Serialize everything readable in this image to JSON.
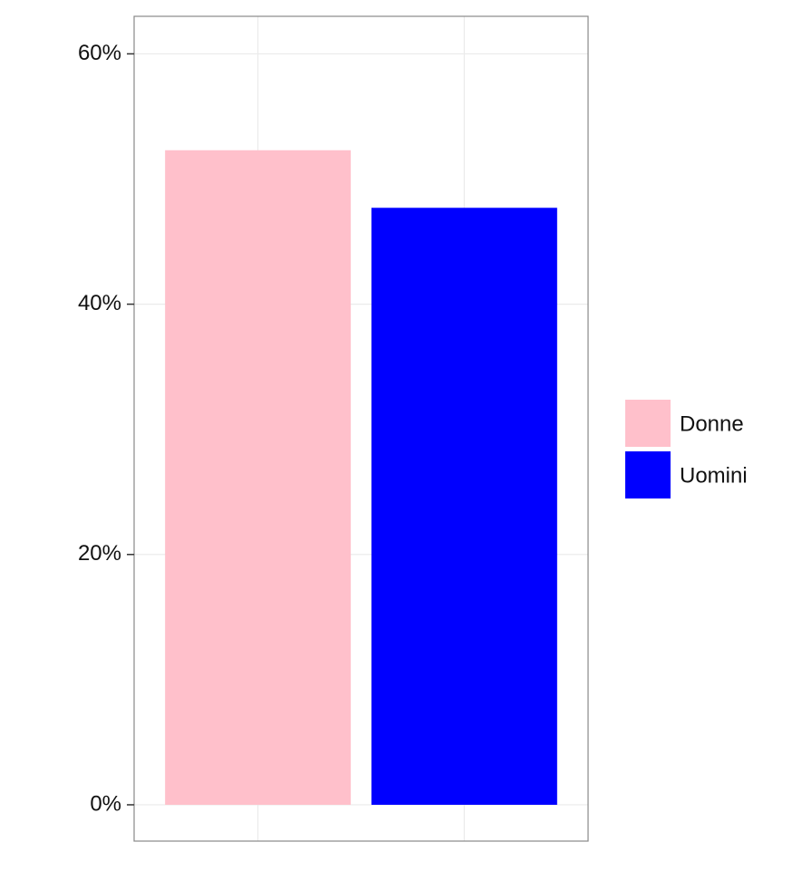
{
  "chart_data": {
    "type": "bar",
    "categories": [
      "Donne",
      "Uomini"
    ],
    "values": [
      52.3,
      47.7
    ],
    "colors": [
      "#ffc0cb",
      "#0000ff"
    ],
    "ylim": [
      -2.9,
      63.0
    ],
    "yticks": [
      {
        "value": 0,
        "label": "0%"
      },
      {
        "value": 20,
        "label": "20%"
      },
      {
        "value": 40,
        "label": "40%"
      },
      {
        "value": 60,
        "label": "60%"
      }
    ],
    "grid": true,
    "legend": "right"
  }
}
